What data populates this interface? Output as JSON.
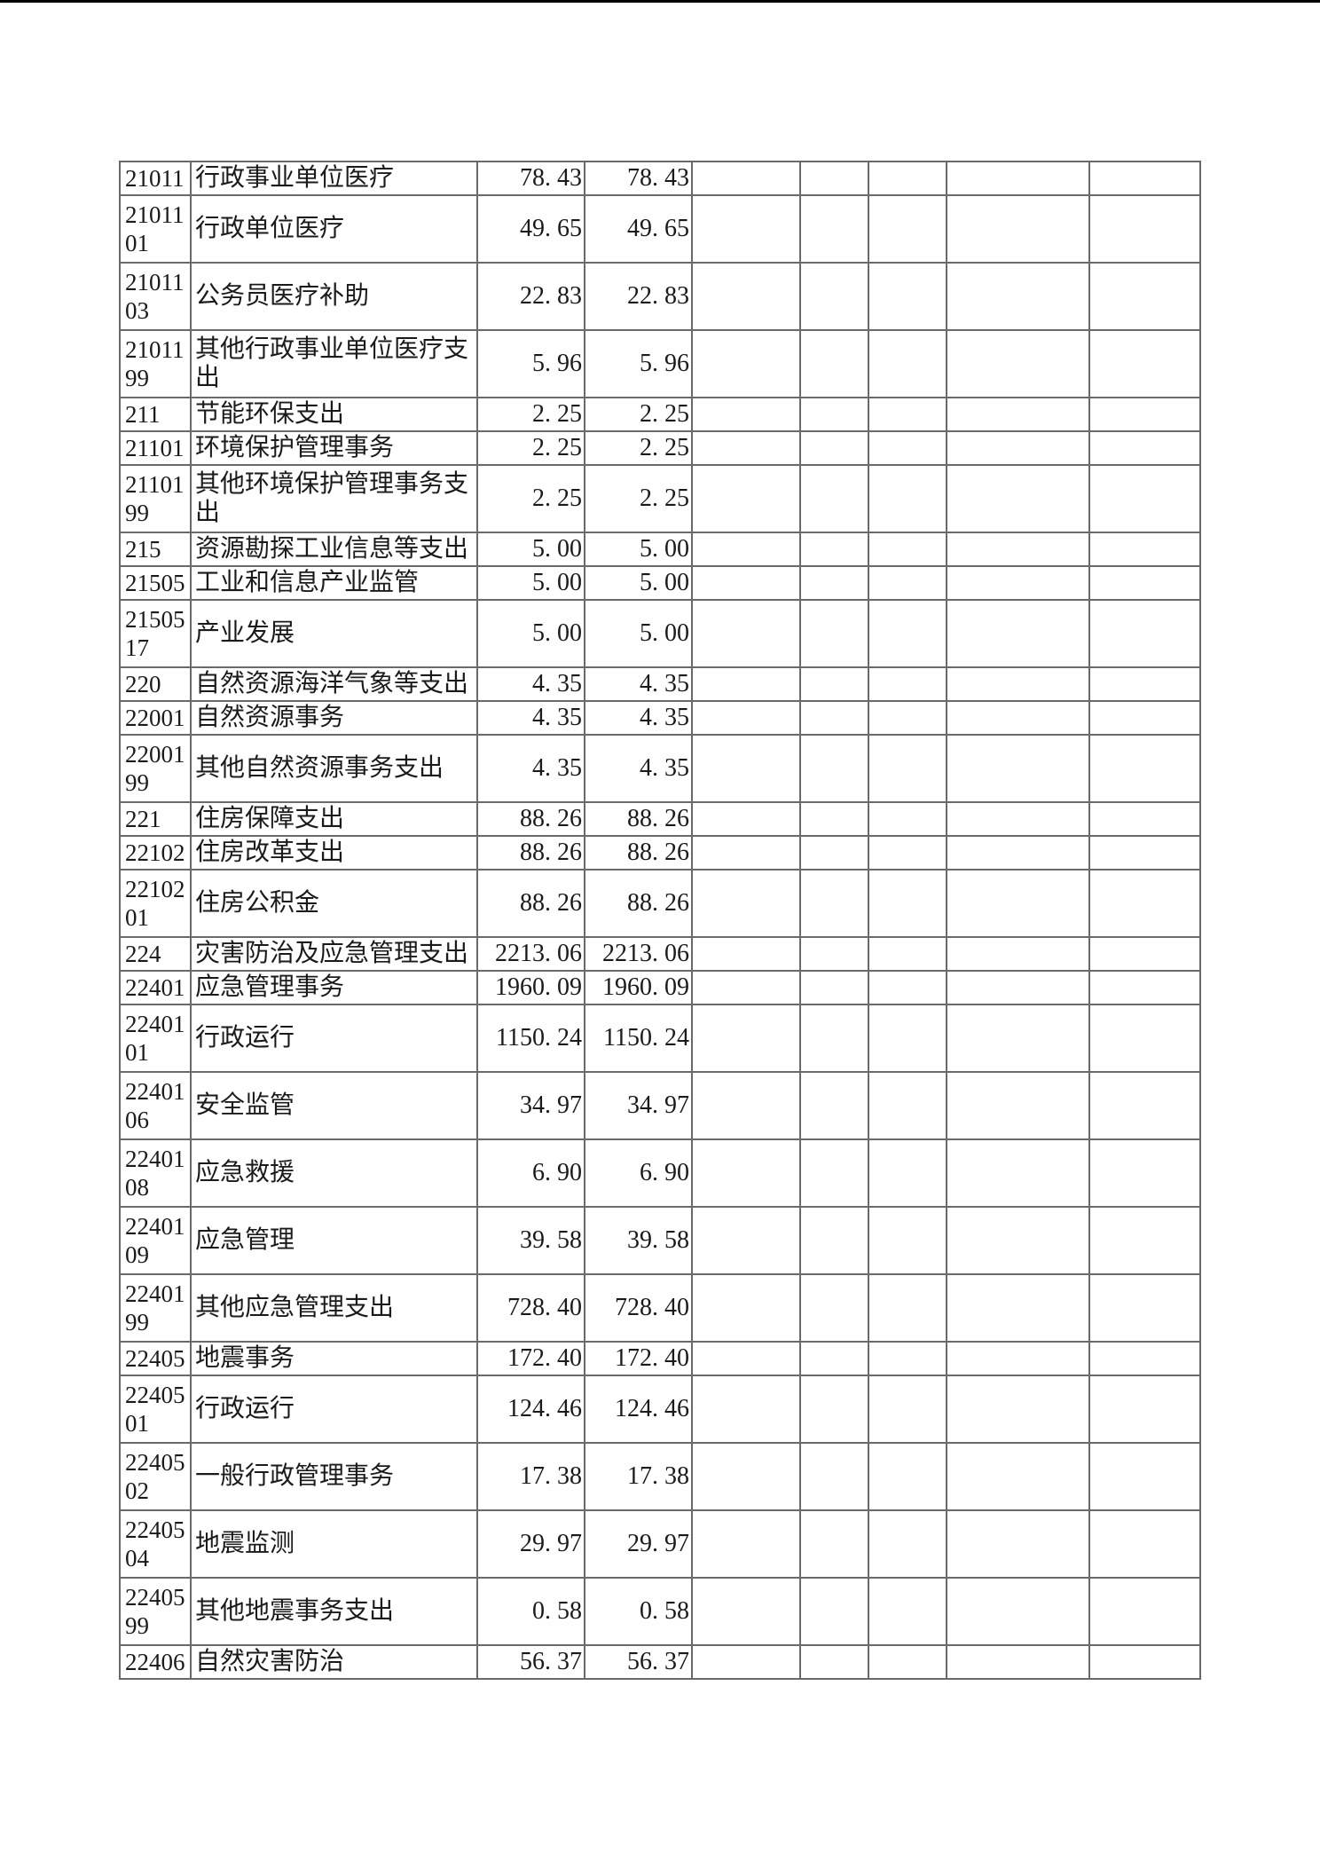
{
  "colors": {
    "page_background": "#ffffff",
    "page_top_border": "#000000",
    "table_border": "#696969",
    "text": "#1a1a1a"
  },
  "table": {
    "empty_trailing_columns": 5,
    "rows": [
      {
        "code": "21011",
        "name": "行政事业单位医疗",
        "amount1": "78.43",
        "amount2": "78.43"
      },
      {
        "code": "2101101",
        "name": "行政单位医疗",
        "amount1": "49.65",
        "amount2": "49.65"
      },
      {
        "code": "2101103",
        "name": "公务员医疗补助",
        "amount1": "22.83",
        "amount2": "22.83"
      },
      {
        "code": "2101199",
        "name": "其他行政事业单位医疗支出",
        "amount1": "5.96",
        "amount2": "5.96"
      },
      {
        "code": "211",
        "name": "节能环保支出",
        "amount1": "2.25",
        "amount2": "2.25"
      },
      {
        "code": "21101",
        "name": "环境保护管理事务",
        "amount1": "2.25",
        "amount2": "2.25"
      },
      {
        "code": "2110199",
        "name": "其他环境保护管理事务支出",
        "amount1": "2.25",
        "amount2": "2.25"
      },
      {
        "code": "215",
        "name": "资源勘探工业信息等支出",
        "amount1": "5.00",
        "amount2": "5.00"
      },
      {
        "code": "21505",
        "name": "工业和信息产业监管",
        "amount1": "5.00",
        "amount2": "5.00"
      },
      {
        "code": "2150517",
        "name": "产业发展",
        "amount1": "5.00",
        "amount2": "5.00"
      },
      {
        "code": "220",
        "name": "自然资源海洋气象等支出",
        "amount1": "4.35",
        "amount2": "4.35"
      },
      {
        "code": "22001",
        "name": "自然资源事务",
        "amount1": "4.35",
        "amount2": "4.35"
      },
      {
        "code": "2200199",
        "name": "其他自然资源事务支出",
        "amount1": "4.35",
        "amount2": "4.35"
      },
      {
        "code": "221",
        "name": "住房保障支出",
        "amount1": "88.26",
        "amount2": "88.26"
      },
      {
        "code": "22102",
        "name": "住房改革支出",
        "amount1": "88.26",
        "amount2": "88.26"
      },
      {
        "code": "2210201",
        "name": "住房公积金",
        "amount1": "88.26",
        "amount2": "88.26"
      },
      {
        "code": "224",
        "name": "灾害防治及应急管理支出",
        "amount1": "2213.06",
        "amount2": "2213.06"
      },
      {
        "code": "22401",
        "name": "应急管理事务",
        "amount1": "1960.09",
        "amount2": "1960.09"
      },
      {
        "code": "2240101",
        "name": "行政运行",
        "amount1": "1150.24",
        "amount2": "1150.24"
      },
      {
        "code": "2240106",
        "name": "安全监管",
        "amount1": "34.97",
        "amount2": "34.97"
      },
      {
        "code": "2240108",
        "name": "应急救援",
        "amount1": "6.90",
        "amount2": "6.90"
      },
      {
        "code": "2240109",
        "name": "应急管理",
        "amount1": "39.58",
        "amount2": "39.58"
      },
      {
        "code": "2240199",
        "name": "其他应急管理支出",
        "amount1": "728.40",
        "amount2": "728.40"
      },
      {
        "code": "22405",
        "name": "地震事务",
        "amount1": "172.40",
        "amount2": "172.40"
      },
      {
        "code": "2240501",
        "name": "行政运行",
        "amount1": "124.46",
        "amount2": "124.46"
      },
      {
        "code": "2240502",
        "name": "一般行政管理事务",
        "amount1": "17.38",
        "amount2": "17.38"
      },
      {
        "code": "2240504",
        "name": "地震监测",
        "amount1": "29.97",
        "amount2": "29.97"
      },
      {
        "code": "2240599",
        "name": "其他地震事务支出",
        "amount1": "0.58",
        "amount2": "0.58"
      },
      {
        "code": "22406",
        "name": "自然灾害防治",
        "amount1": "56.37",
        "amount2": "56.37"
      }
    ]
  }
}
